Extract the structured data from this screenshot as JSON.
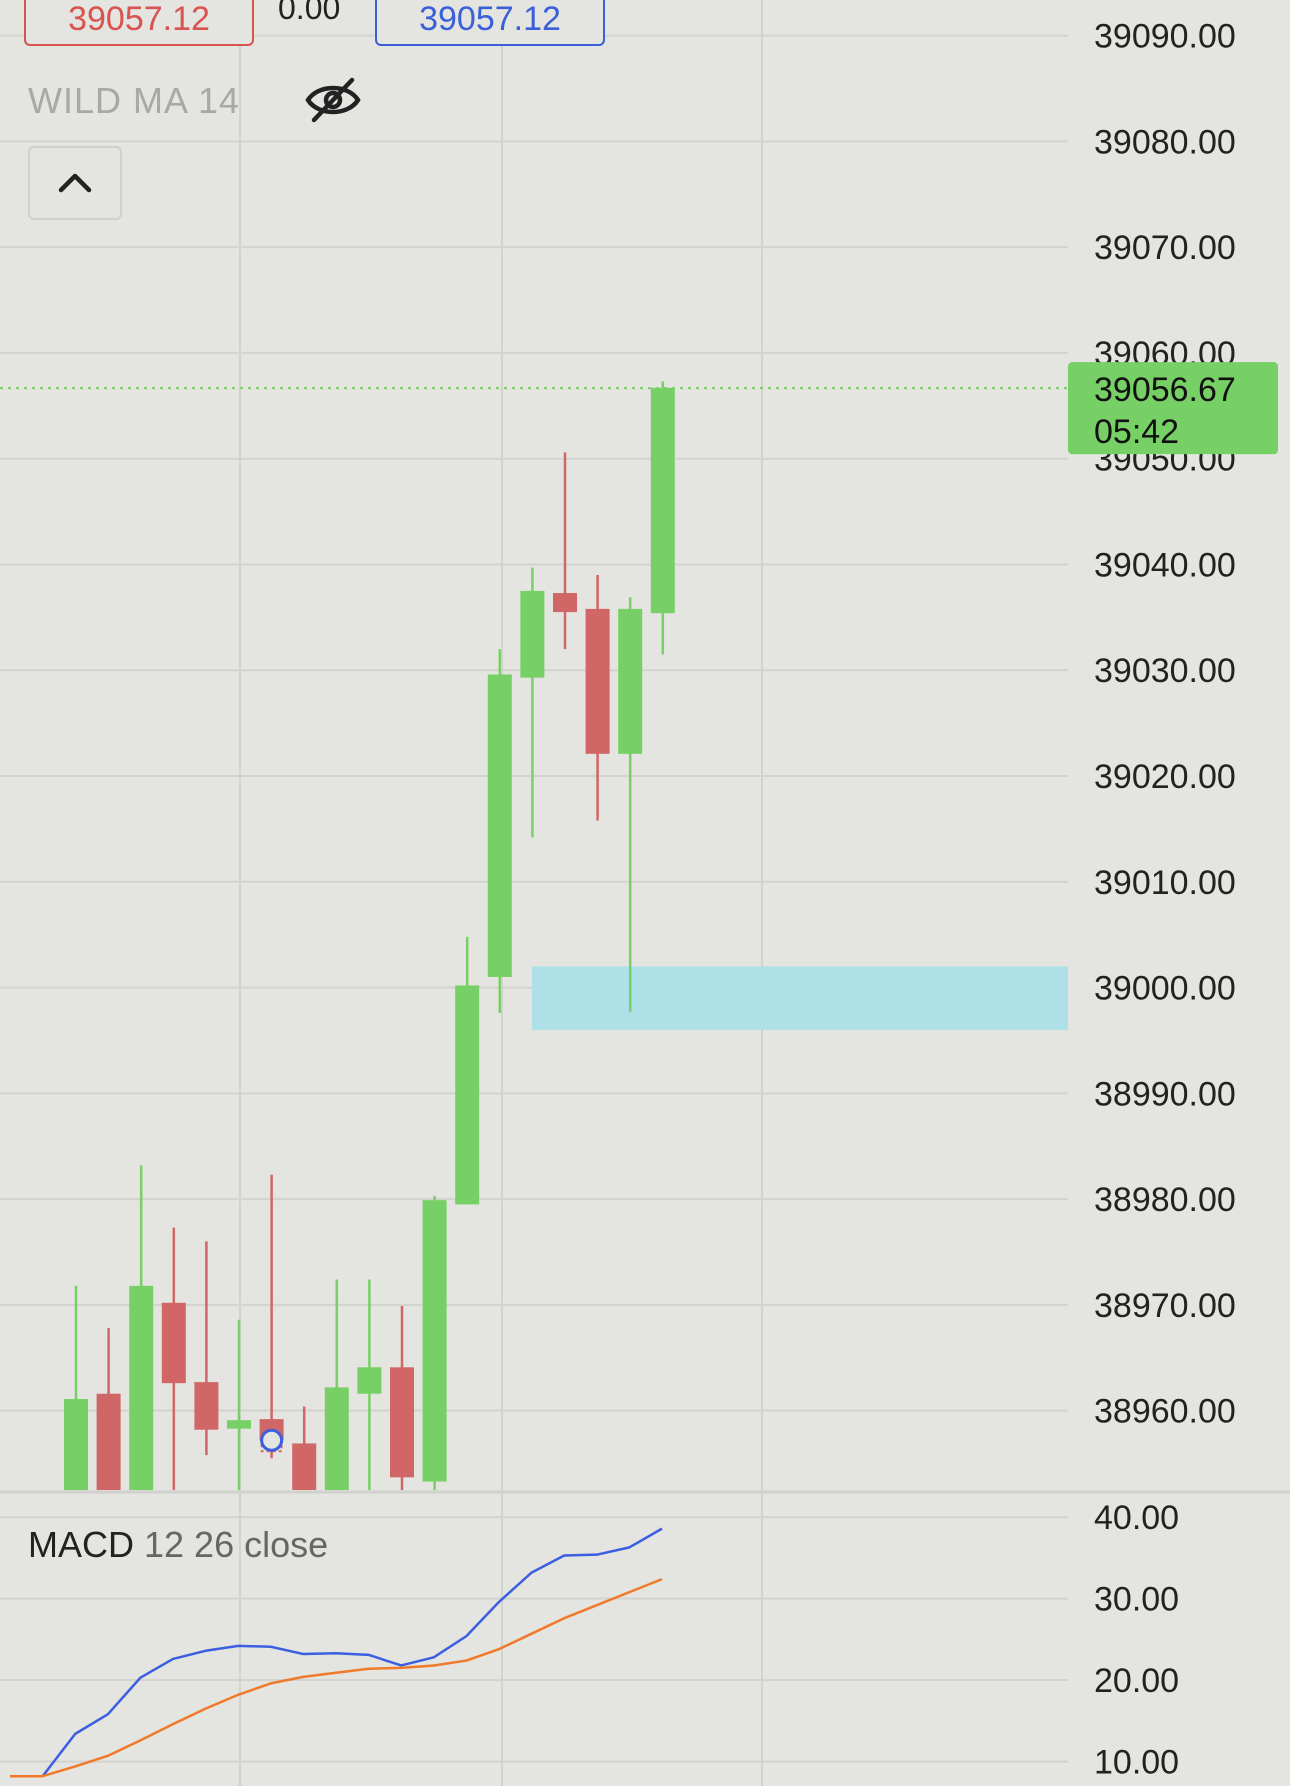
{
  "header": {
    "sell_price": "39057.12",
    "spread": "0.00",
    "buy_price": "39057.12"
  },
  "indicator_label": "WILD MA 14",
  "macd_label": {
    "name": "MACD",
    "params": "12 26 close"
  },
  "icons": {
    "visibility": "eye-off-icon",
    "collapse": "chevron-up-icon"
  },
  "colors": {
    "background": "#e4e4e0",
    "grid": "#d2d2ce",
    "bull": "#77d065",
    "bear": "#d06666",
    "zone": "#aee0e8",
    "macd_line": "#3b5fe0",
    "signal_line": "#f07a2a",
    "price_line": "#77d065",
    "sell": "#d9534f",
    "buy": "#3a5fd9"
  },
  "chart_data": [
    {
      "type": "candlestick",
      "ylim": [
        38952.5,
        39094.5
      ],
      "y_ticks": [
        "39090.00",
        "39080.00",
        "39070.00",
        "39060.00",
        "39050.00",
        "39040.00",
        "39030.00",
        "39020.00",
        "39010.00",
        "39000.00",
        "38990.00",
        "38980.00",
        "38970.00",
        "38960.00"
      ],
      "y_tick_values": [
        39090,
        39080,
        39070,
        39060,
        39050,
        39040,
        39030,
        39020,
        39010,
        39000,
        38990,
        38980,
        38970,
        38960
      ],
      "current_price": {
        "value": 39056.67,
        "label": "39056.67",
        "countdown": "05:42"
      },
      "zone": {
        "from": 38996,
        "to": 39002
      },
      "candles": [
        {
          "o": 38952.5,
          "h": 38971.8,
          "l": 38952.5,
          "c": 38961.1
        },
        {
          "o": 38961.6,
          "h": 38967.8,
          "l": 38952.5,
          "c": 38952.5
        },
        {
          "o": 38952.5,
          "h": 38983.2,
          "l": 38952.5,
          "c": 38971.8
        },
        {
          "o": 38970.2,
          "h": 38977.3,
          "l": 38952.5,
          "c": 38962.6
        },
        {
          "o": 38962.7,
          "h": 38976.0,
          "l": 38955.8,
          "c": 38958.2
        },
        {
          "o": 38958.3,
          "h": 38968.6,
          "l": 38952.5,
          "c": 38959.1
        },
        {
          "o": 38959.2,
          "h": 38982.3,
          "l": 38955.5,
          "c": 38957.2
        },
        {
          "o": 38956.9,
          "h": 38960.4,
          "l": 38952.5,
          "c": 38952.5
        },
        {
          "o": 38952.5,
          "h": 38972.4,
          "l": 38952.5,
          "c": 38962.2
        },
        {
          "o": 38961.6,
          "h": 38972.4,
          "l": 38952.5,
          "c": 38964.1
        },
        {
          "o": 38964.1,
          "h": 38969.9,
          "l": 38952.5,
          "c": 38953.7
        },
        {
          "o": 38953.3,
          "h": 38980.3,
          "l": 38952.5,
          "c": 38979.9
        },
        {
          "o": 38979.5,
          "h": 39004.8,
          "l": 38979.5,
          "c": 39000.2
        },
        {
          "o": 39001.0,
          "h": 39032.0,
          "l": 38997.6,
          "c": 39029.6
        },
        {
          "o": 39029.3,
          "h": 39039.7,
          "l": 39014.2,
          "c": 39037.5
        },
        {
          "o": 39037.3,
          "h": 39050.6,
          "l": 39032.0,
          "c": 39035.5
        },
        {
          "o": 39035.8,
          "h": 39039.0,
          "l": 39015.8,
          "c": 39022.1
        },
        {
          "o": 39022.1,
          "h": 39036.9,
          "l": 38997.7,
          "c": 39035.8
        },
        {
          "o": 39035.4,
          "h": 39057.3,
          "l": 39031.5,
          "c": 39056.7
        }
      ]
    },
    {
      "type": "line",
      "title": "MACD 12 26 close",
      "ylim": [
        7,
        41.5
      ],
      "y_ticks": [
        "40.00",
        "30.00",
        "20.00",
        "10.00"
      ],
      "y_tick_values": [
        40,
        30,
        20,
        10
      ],
      "series": [
        {
          "color": "#3b5fe0",
          "values": [
            8.2,
            8.2,
            13.4,
            15.8,
            20.3,
            22.6,
            23.6,
            24.2,
            24.1,
            23.2,
            23.3,
            23.1,
            21.8,
            22.8,
            25.4,
            29.6,
            33.2,
            35.3,
            35.4,
            36.3,
            38.6
          ]
        },
        {
          "color": "#f07a2a",
          "values": [
            8.2,
            8.2,
            9.4,
            10.7,
            12.6,
            14.6,
            16.5,
            18.2,
            19.6,
            20.4,
            20.9,
            21.4,
            21.5,
            21.8,
            22.4,
            23.8,
            25.7,
            27.6,
            29.2,
            30.8,
            32.4
          ]
        }
      ]
    }
  ]
}
